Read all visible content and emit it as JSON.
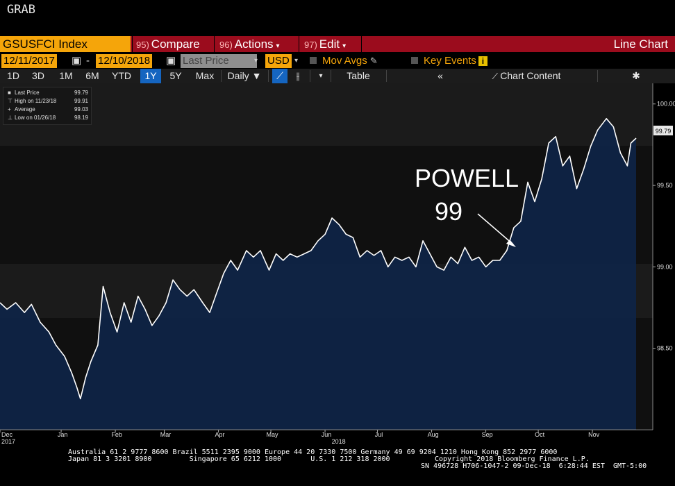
{
  "window": {
    "title": "GRAB"
  },
  "toolbar": {
    "ticker": "GSUSFCI Index",
    "compare": {
      "fn": "95)",
      "label": "Compare"
    },
    "actions": {
      "fn": "96)",
      "label": "Actions"
    },
    "edit": {
      "fn": "97)",
      "label": "Edit"
    },
    "chart_type": "Line Chart"
  },
  "options": {
    "start_date": "12/11/2017",
    "dash": "-",
    "end_date": "12/10/2018",
    "field": "Last Price",
    "currency": "USD",
    "mov_avgs": "Mov Avgs",
    "key_events": "Key Events",
    "info_icon": "i"
  },
  "ranges": {
    "items": [
      "1D",
      "3D",
      "1M",
      "6M",
      "YTD",
      "1Y",
      "5Y",
      "Max"
    ],
    "selected": "1Y",
    "frequency": "Daily",
    "table": "Table",
    "chart_content": "Chart Content"
  },
  "legend": {
    "rows": [
      {
        "label": "Last Price",
        "value": "99.79"
      },
      {
        "label": "High on 11/23/18",
        "value": "99.91"
      },
      {
        "label": "Average",
        "value": "99.03"
      },
      {
        "label": "Low on 01/26/18",
        "value": "98.19"
      }
    ]
  },
  "annotation": {
    "line1": "POWELL",
    "line2": "99"
  },
  "last_price_tag": "99.79",
  "footer": {
    "line1": "Australia 61 2 9777 8600 Brazil 5511 2395 9000 Europe 44 20 7330 7500 Germany 49 69 9204 1210 Hong Kong 852 2977 6000",
    "line2": "Japan 81 3 3201 8900         Singapore 65 6212 1000       U.S. 1 212 318 2000",
    "line3": "Copyright 2018 Bloomberg Finance L.P.",
    "line4": "SN 496728 H706-1047-2 09-Dec-18  6:28:44 EST  GMT-5:00"
  },
  "colors": {
    "accent": "#f5a50a",
    "command_bar": "#9b0c1d",
    "area_fill": "#0f2446",
    "line": "#ffffff",
    "selected": "#1565c0"
  },
  "chart_data": {
    "type": "area",
    "title": "",
    "xlabel": "",
    "ylabel": "",
    "ylim": [
      98.0,
      100.05
    ],
    "yticks": [
      98.5,
      99.0,
      99.5,
      100.0
    ],
    "ytick_labels": [
      "98.50",
      "99.00",
      "99.50",
      "100.00"
    ],
    "xticks": [
      {
        "date": "2017-12-11",
        "label": "Dec"
      },
      {
        "date": "2018-01-15",
        "label": "Jan"
      },
      {
        "date": "2018-02-15",
        "label": "Feb"
      },
      {
        "date": "2018-03-15",
        "label": "Mar"
      },
      {
        "date": "2018-04-15",
        "label": "Apr"
      },
      {
        "date": "2018-05-15",
        "label": "May"
      },
      {
        "date": "2018-06-15",
        "label": "Jun"
      },
      {
        "date": "2018-07-15",
        "label": "Jul"
      },
      {
        "date": "2018-08-15",
        "label": "Aug"
      },
      {
        "date": "2018-09-15",
        "label": "Sep"
      },
      {
        "date": "2018-10-15",
        "label": "Oct"
      },
      {
        "date": "2018-11-15",
        "label": "Nov"
      }
    ],
    "year_labels": [
      {
        "date": "2017-12-11",
        "label": "2017"
      },
      {
        "date": "2018-06-22",
        "label": "2018"
      }
    ],
    "grid": false,
    "legend_position": "top-left",
    "series": [
      {
        "name": "Last Price",
        "points": [
          [
            "2017-12-11",
            98.78
          ],
          [
            "2017-12-15",
            98.74
          ],
          [
            "2017-12-20",
            98.78
          ],
          [
            "2017-12-25",
            98.72
          ],
          [
            "2017-12-29",
            98.77
          ],
          [
            "2018-01-03",
            98.66
          ],
          [
            "2018-01-08",
            98.6
          ],
          [
            "2018-01-12",
            98.52
          ],
          [
            "2018-01-17",
            98.45
          ],
          [
            "2018-01-21",
            98.35
          ],
          [
            "2018-01-24",
            98.26
          ],
          [
            "2018-01-26",
            98.19
          ],
          [
            "2018-01-29",
            98.32
          ],
          [
            "2018-02-01",
            98.42
          ],
          [
            "2018-02-05",
            98.52
          ],
          [
            "2018-02-08",
            98.88
          ],
          [
            "2018-02-12",
            98.72
          ],
          [
            "2018-02-16",
            98.6
          ],
          [
            "2018-02-20",
            98.78
          ],
          [
            "2018-02-24",
            98.66
          ],
          [
            "2018-02-28",
            98.82
          ],
          [
            "2018-03-04",
            98.74
          ],
          [
            "2018-03-08",
            98.64
          ],
          [
            "2018-03-12",
            98.7
          ],
          [
            "2018-03-16",
            98.78
          ],
          [
            "2018-03-20",
            98.92
          ],
          [
            "2018-03-24",
            98.86
          ],
          [
            "2018-03-28",
            98.82
          ],
          [
            "2018-04-01",
            98.86
          ],
          [
            "2018-04-06",
            98.78
          ],
          [
            "2018-04-10",
            98.72
          ],
          [
            "2018-04-14",
            98.84
          ],
          [
            "2018-04-18",
            98.96
          ],
          [
            "2018-04-22",
            99.04
          ],
          [
            "2018-04-26",
            98.98
          ],
          [
            "2018-05-01",
            99.1
          ],
          [
            "2018-05-05",
            99.06
          ],
          [
            "2018-05-09",
            99.1
          ],
          [
            "2018-05-14",
            98.98
          ],
          [
            "2018-05-18",
            99.08
          ],
          [
            "2018-05-22",
            99.04
          ],
          [
            "2018-05-26",
            99.08
          ],
          [
            "2018-05-30",
            99.06
          ],
          [
            "2018-06-03",
            99.08
          ],
          [
            "2018-06-07",
            99.1
          ],
          [
            "2018-06-11",
            99.16
          ],
          [
            "2018-06-15",
            99.2
          ],
          [
            "2018-06-19",
            99.3
          ],
          [
            "2018-06-23",
            99.26
          ],
          [
            "2018-06-27",
            99.2
          ],
          [
            "2018-07-01",
            99.18
          ],
          [
            "2018-07-05",
            99.06
          ],
          [
            "2018-07-09",
            99.1
          ],
          [
            "2018-07-13",
            99.07
          ],
          [
            "2018-07-17",
            99.1
          ],
          [
            "2018-07-21",
            99.0
          ],
          [
            "2018-07-25",
            99.06
          ],
          [
            "2018-07-29",
            99.04
          ],
          [
            "2018-08-02",
            99.06
          ],
          [
            "2018-08-06",
            99.0
          ],
          [
            "2018-08-10",
            99.16
          ],
          [
            "2018-08-14",
            99.08
          ],
          [
            "2018-08-18",
            99.0
          ],
          [
            "2018-08-22",
            98.98
          ],
          [
            "2018-08-26",
            99.06
          ],
          [
            "2018-08-30",
            99.02
          ],
          [
            "2018-09-03",
            99.12
          ],
          [
            "2018-09-07",
            99.04
          ],
          [
            "2018-09-11",
            99.06
          ],
          [
            "2018-09-15",
            99.0
          ],
          [
            "2018-09-19",
            99.04
          ],
          [
            "2018-09-23",
            99.04
          ],
          [
            "2018-09-27",
            99.1
          ],
          [
            "2018-10-01",
            99.24
          ],
          [
            "2018-10-05",
            99.28
          ],
          [
            "2018-10-09",
            99.52
          ],
          [
            "2018-10-13",
            99.4
          ],
          [
            "2018-10-17",
            99.54
          ],
          [
            "2018-10-21",
            99.76
          ],
          [
            "2018-10-25",
            99.8
          ],
          [
            "2018-10-29",
            99.62
          ],
          [
            "2018-11-02",
            99.68
          ],
          [
            "2018-11-06",
            99.48
          ],
          [
            "2018-11-10",
            99.6
          ],
          [
            "2018-11-14",
            99.74
          ],
          [
            "2018-11-18",
            99.84
          ],
          [
            "2018-11-23",
            99.91
          ],
          [
            "2018-11-27",
            99.86
          ],
          [
            "2018-12-01",
            99.7
          ],
          [
            "2018-12-05",
            99.62
          ],
          [
            "2018-12-07",
            99.76
          ],
          [
            "2018-12-10",
            99.79
          ]
        ]
      }
    ]
  }
}
